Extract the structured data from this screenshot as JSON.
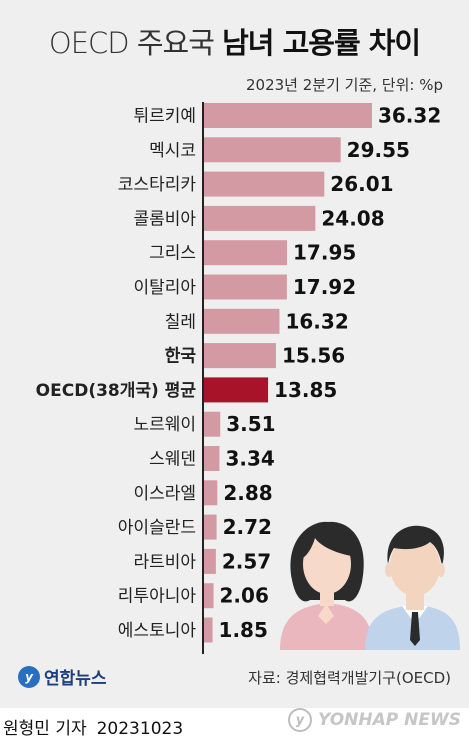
{
  "title_light": "OECD 주요국",
  "title_bold": "남녀 고용률 차이",
  "subtitle": "2023년 2분기 기준, 단위: %p",
  "source": "자료: 경제협력개발기구(OECD)",
  "logo_text": "연합뉴스",
  "reporter": "원형민 기자",
  "date": "20231023",
  "watermark": "YONHAP NEWS",
  "colors": {
    "bar": "#d49aa3",
    "highlight": "#a9132a",
    "axis": "#222222",
    "background": "#efefef"
  },
  "chart_data": {
    "type": "bar",
    "orientation": "horizontal",
    "title": "OECD 주요국 남녀 고용률 차이",
    "subtitle": "2023년 2분기 기준, 단위: %p",
    "categories": [
      "튀르키예",
      "멕시코",
      "코스타리카",
      "콜롬비아",
      "그리스",
      "이탈리아",
      "칠레",
      "한국",
      "OECD(38개국) 평균",
      "노르웨이",
      "스웨덴",
      "이스라엘",
      "아이슬란드",
      "라트비아",
      "리투아니아",
      "에스토니아"
    ],
    "values": [
      36.32,
      29.55,
      26.01,
      24.08,
      17.95,
      17.92,
      16.32,
      15.56,
      13.85,
      3.51,
      3.34,
      2.88,
      2.72,
      2.57,
      2.06,
      1.85
    ],
    "value_labels": [
      "36.32",
      "29.55",
      "26.01",
      "24.08",
      "17.95",
      "17.92",
      "16.32",
      "15.56",
      "13.85",
      "3.51",
      "3.34",
      "2.88",
      "2.72",
      "2.57",
      "2.06",
      "1.85"
    ],
    "highlight": "OECD(38개국) 평균",
    "bold_categories": [
      "한국",
      "OECD(38개국) 평균"
    ],
    "xlim": [
      0,
      38
    ],
    "grid": false,
    "legend": "none"
  }
}
